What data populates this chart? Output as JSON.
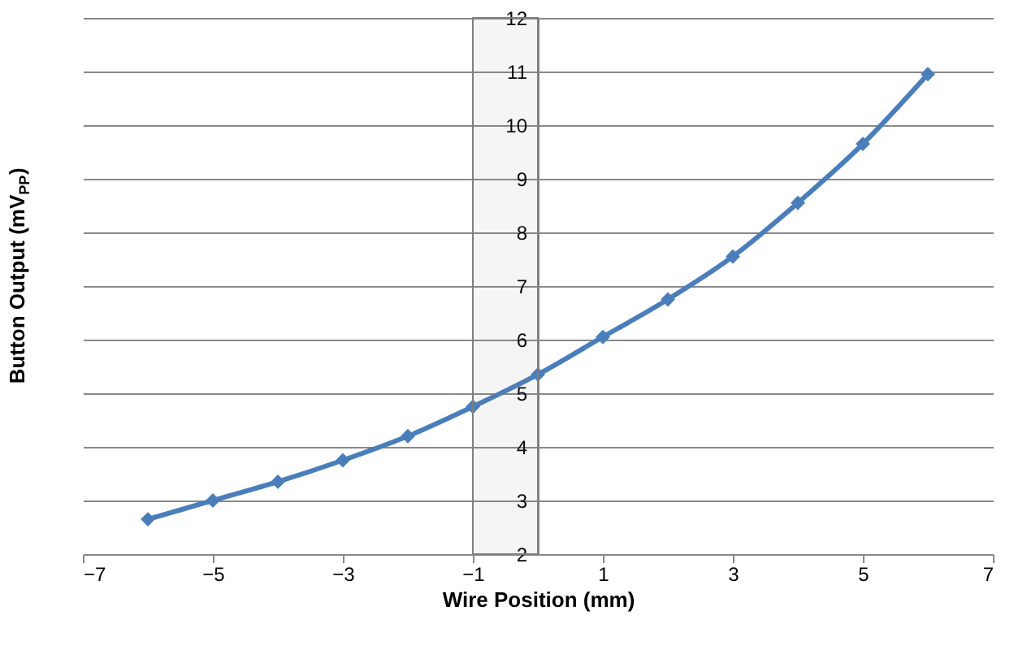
{
  "chart_data": {
    "type": "line",
    "xlabel": "Wire Position (mm)",
    "ylabel": "Button Output (mV$_{PP}$)",
    "x": [
      -6,
      -5,
      -4,
      -3,
      -2,
      -1,
      0,
      1,
      2,
      3,
      4,
      5,
      6
    ],
    "series": [
      {
        "color": "#4a7ebb",
        "values": [
          2.65,
          3.0,
          3.35,
          3.75,
          4.2,
          4.75,
          5.35,
          6.05,
          6.75,
          7.55,
          8.55,
          9.65,
          10.95
        ]
      }
    ],
    "xlim": [
      -7,
      7
    ],
    "xticks": [
      -7,
      -5,
      -3,
      -1,
      1,
      3,
      5,
      7
    ],
    "ylim": [
      2,
      12
    ],
    "yticks": [
      2,
      3,
      4,
      5,
      6,
      7,
      8,
      9,
      10,
      11,
      12
    ],
    "bands": [
      {
        "axis": "x",
        "from": -1,
        "to": 0,
        "color": "#7f7f7f"
      }
    ],
    "grid": "y",
    "marker": "diamond",
    "line_style": "solid"
  }
}
